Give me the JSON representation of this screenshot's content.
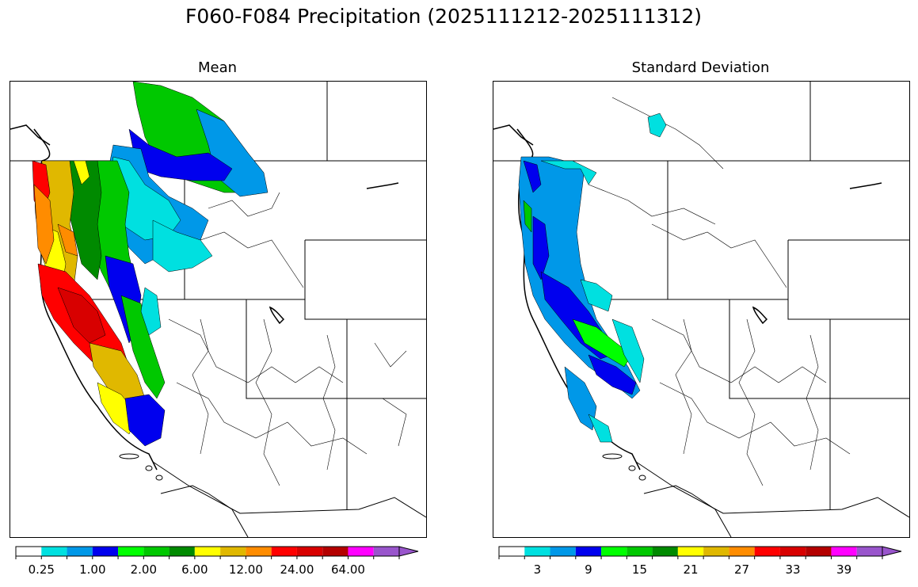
{
  "title": "F060-F084 Precipitation (2025111212-2025111312)",
  "panels": [
    {
      "title": "Mean",
      "colorbar": {
        "colors": [
          "#ffffff",
          "#00e0e0",
          "#0098e8",
          "#0000ee",
          "#00ff00",
          "#00c800",
          "#008a00",
          "#ffff00",
          "#e0b800",
          "#ff8c00",
          "#ff0000",
          "#d80000",
          "#b40000",
          "#ff00ff",
          "#9955cc"
        ],
        "tick_labels": [
          "0.25",
          "1.00",
          "2.00",
          "6.00",
          "12.00",
          "24.00",
          "64.00"
        ],
        "extend": "max"
      }
    },
    {
      "title": "Standard Deviation",
      "colorbar": {
        "colors": [
          "#ffffff",
          "#00e0e0",
          "#0098e8",
          "#0000ee",
          "#00ff00",
          "#00c800",
          "#008a00",
          "#ffff00",
          "#e0b800",
          "#ff8c00",
          "#ff0000",
          "#d80000",
          "#b40000",
          "#ff00ff",
          "#9955cc"
        ],
        "tick_labels": [
          "3",
          "9",
          "15",
          "21",
          "27",
          "33",
          "39"
        ],
        "extend": "max"
      }
    }
  ]
}
